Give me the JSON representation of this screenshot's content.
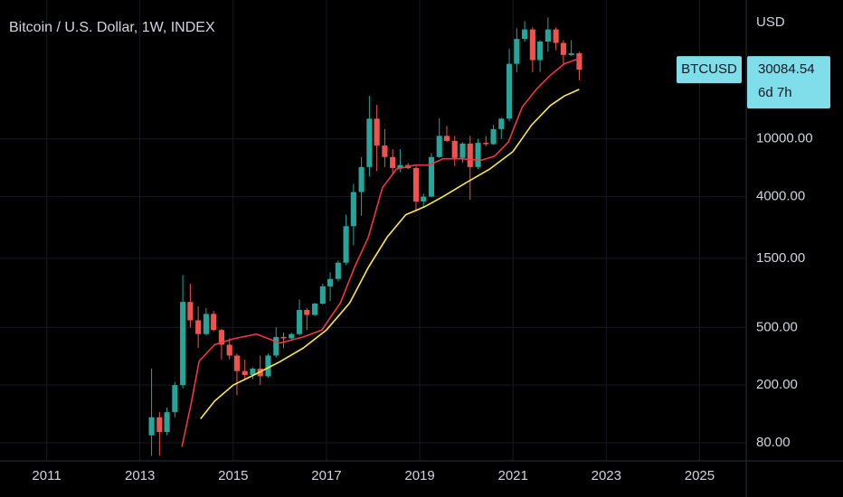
{
  "chart_data": {
    "type": "candlestick",
    "title": "Bitcoin / U.S. Dollar, 1W, INDEX",
    "currency": "USD",
    "symbol": "BTCUSD",
    "last_price": 30084.54,
    "countdown": "6d 7h",
    "log_scale": true,
    "grid": true,
    "up_color": "#26a69a",
    "down_color": "#ef5350",
    "xlim": [
      2010,
      2026
    ],
    "xticks": [
      2011,
      2013,
      2015,
      2017,
      2019,
      2021,
      2023,
      2025
    ],
    "ylim": [
      60,
      91000
    ],
    "yticks": [
      {
        "value": 80,
        "label": "80.00"
      },
      {
        "value": 200,
        "label": "200.00"
      },
      {
        "value": 500,
        "label": "500.00"
      },
      {
        "value": 1500,
        "label": "1500.00"
      },
      {
        "value": 4000,
        "label": "4000.00"
      },
      {
        "value": 10000,
        "label": "10000.00"
      }
    ],
    "x": [
      2013.25,
      2013.42,
      2013.58,
      2013.75,
      2013.92,
      2014.08,
      2014.25,
      2014.42,
      2014.58,
      2014.75,
      2014.92,
      2015.08,
      2015.25,
      2015.42,
      2015.58,
      2015.75,
      2015.92,
      2016.08,
      2016.25,
      2016.42,
      2016.58,
      2016.75,
      2016.92,
      2017.08,
      2017.25,
      2017.42,
      2017.58,
      2017.75,
      2017.92,
      2018.08,
      2018.25,
      2018.42,
      2018.58,
      2018.75,
      2018.92,
      2019.08,
      2019.25,
      2019.42,
      2019.58,
      2019.75,
      2019.92,
      2020.08,
      2020.25,
      2020.42,
      2020.58,
      2020.75,
      2020.92,
      2021.08,
      2021.25,
      2021.42,
      2021.58,
      2021.75,
      2021.92,
      2022.08,
      2022.25,
      2022.42
    ],
    "open": [
      90,
      120,
      95,
      130,
      200,
      750,
      560,
      450,
      620,
      480,
      380,
      320,
      250,
      235,
      260,
      230,
      320,
      430,
      420,
      450,
      660,
      610,
      730,
      960,
      1080,
      1400,
      2500,
      4300,
      6400,
      13800,
      9000,
      7500,
      6300,
      6600,
      6300,
      3700,
      4000,
      7500,
      10500,
      9700,
      7400,
      9300,
      6400,
      9400,
      9200,
      11700,
      13800,
      33000,
      49000,
      57000,
      35000,
      47000,
      57000,
      46000,
      38000,
      39000
    ],
    "high": [
      260,
      130,
      140,
      210,
      1150,
      1000,
      700,
      680,
      650,
      490,
      420,
      330,
      300,
      265,
      320,
      330,
      500,
      460,
      460,
      780,
      680,
      740,
      1000,
      1200,
      1450,
      3000,
      4900,
      7500,
      19800,
      17200,
      11700,
      8500,
      8500,
      6800,
      6500,
      4200,
      8000,
      13900,
      12300,
      10500,
      9500,
      10500,
      10000,
      10500,
      12500,
      14000,
      42000,
      58000,
      65000,
      59000,
      48000,
      69000,
      59000,
      48000,
      48000,
      40000
    ],
    "low": [
      65,
      65,
      90,
      120,
      190,
      500,
      360,
      440,
      470,
      300,
      300,
      170,
      220,
      220,
      200,
      225,
      310,
      360,
      410,
      440,
      480,
      600,
      720,
      760,
      1040,
      1350,
      1850,
      2950,
      5500,
      6000,
      6400,
      5800,
      5900,
      6200,
      3150,
      3350,
      3950,
      7400,
      9500,
      6500,
      6850,
      3800,
      6200,
      8900,
      9100,
      10000,
      13200,
      28800,
      47000,
      28800,
      29000,
      40000,
      41000,
      33000,
      37500,
      25400
    ],
    "close": [
      120,
      95,
      130,
      200,
      750,
      560,
      450,
      620,
      480,
      380,
      320,
      250,
      235,
      260,
      230,
      320,
      430,
      420,
      450,
      660,
      610,
      730,
      960,
      1080,
      1400,
      2500,
      4300,
      6400,
      13800,
      9000,
      7500,
      6300,
      6600,
      6300,
      3700,
      4000,
      7500,
      10500,
      9700,
      7400,
      9300,
      6400,
      9400,
      9200,
      11700,
      13800,
      33000,
      49000,
      57000,
      35000,
      47000,
      57000,
      46000,
      38000,
      39000,
      30084.54
    ],
    "lines": [
      {
        "color": "#f23645",
        "x": [
          2013.9,
          2014.1,
          2014.27,
          2014.6,
          2015.0,
          2015.5,
          2016.0,
          2016.5,
          2016.9,
          2017.3,
          2017.6,
          2017.9,
          2018.2,
          2018.5,
          2018.9,
          2019.2,
          2019.5,
          2019.9,
          2020.3,
          2020.6,
          2020.9,
          2021.2,
          2021.5,
          2021.8,
          2022.1,
          2022.42
        ],
        "values": [
          75,
          150,
          293,
          380,
          417,
          450,
          390,
          430,
          480,
          740,
          1300,
          2100,
          4600,
          6200,
          6600,
          6600,
          7300,
          7300,
          7100,
          7600,
          9500,
          16700,
          22000,
          27500,
          33000,
          36000
        ]
      },
      {
        "color": "#ffeb3b",
        "x": [
          2014.3,
          2014.6,
          2015.0,
          2015.5,
          2016.0,
          2016.5,
          2017.0,
          2017.5,
          2017.9,
          2018.3,
          2018.7,
          2019.1,
          2019.5,
          2020.0,
          2020.5,
          2021.0,
          2021.4,
          2021.8,
          2022.1,
          2022.42
        ],
        "values": [
          117,
          155,
          200,
          240,
          290,
          360,
          480,
          740,
          1300,
          2100,
          3000,
          3400,
          4000,
          5000,
          6200,
          8200,
          12500,
          17000,
          19800,
          22000
        ]
      }
    ]
  }
}
